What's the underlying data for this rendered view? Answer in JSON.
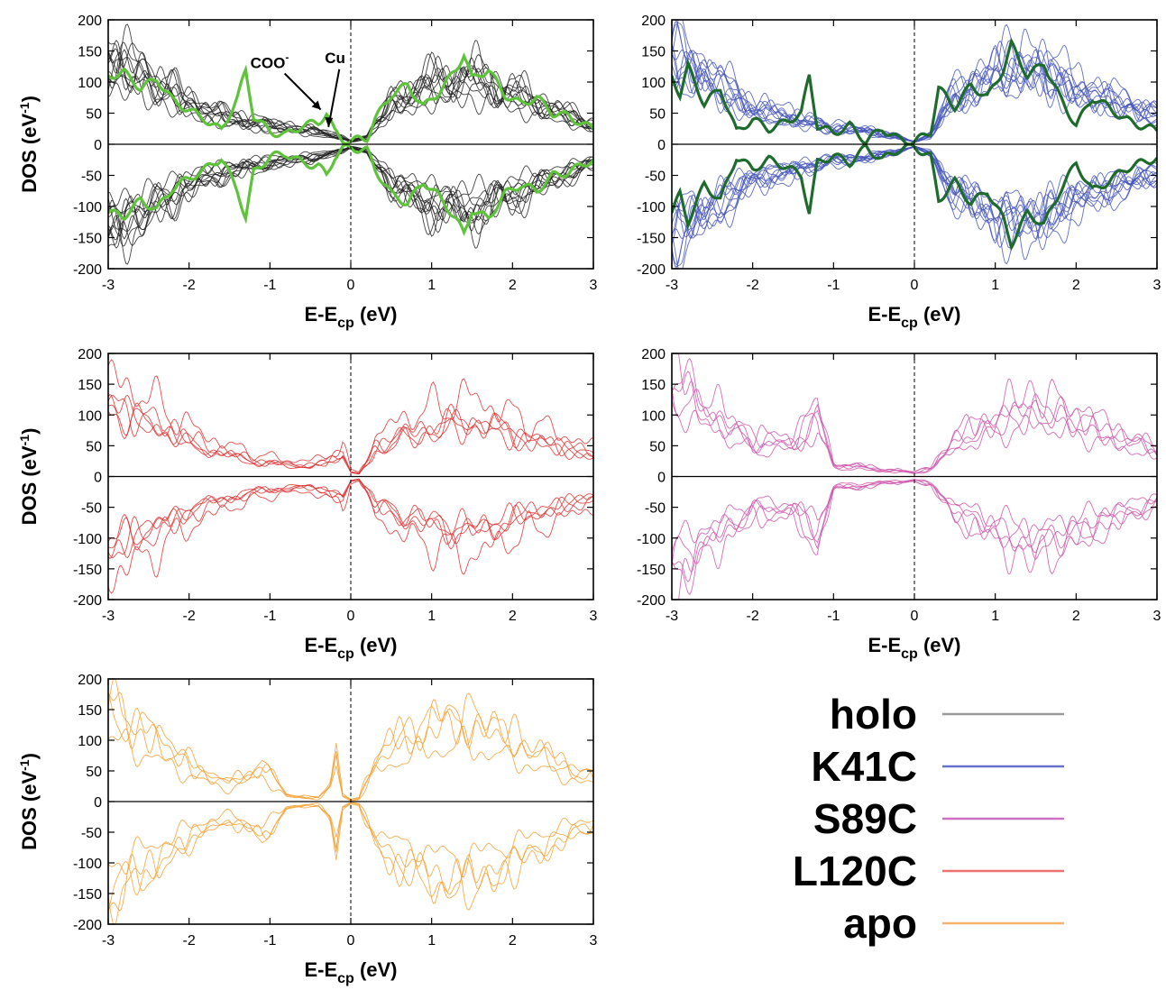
{
  "chart_data": [
    {
      "type": "line",
      "panel": "top-left",
      "xlabel": "E-E",
      "xlabel_sub": "cp",
      "xlabel_unit": " (eV)",
      "ylabel": "DOS (eV",
      "ylabel_sup": "-1",
      "ylabel_end": ")",
      "xlim": [
        -3,
        3
      ],
      "ylim": [
        -200,
        200
      ],
      "xticks": [
        "-3",
        "-2",
        "-1",
        "0",
        "1",
        "2",
        "3"
      ],
      "yticks": [
        "200",
        "150",
        "100",
        "50",
        "0",
        "-50",
        "-100",
        "-150",
        "-200"
      ],
      "series_color": "#222222",
      "highlight_color": "#5ec23a",
      "n_thin": 11,
      "envelope": {
        "x": [
          -3.0,
          -2.5,
          -2.0,
          -1.5,
          -1.0,
          -0.5,
          -0.2,
          0.0,
          0.2,
          0.5,
          1.0,
          1.5,
          2.0,
          2.5,
          3.0
        ],
        "dos": [
          135,
          105,
          65,
          42,
          30,
          22,
          14,
          5,
          12,
          65,
          95,
          105,
          80,
          55,
          30
        ]
      },
      "highlight_series": {
        "x": [
          -3.0,
          -2.8,
          -2.6,
          -2.4,
          -2.2,
          -2.0,
          -1.8,
          -1.6,
          -1.4,
          -1.3,
          -1.2,
          -1.0,
          -0.8,
          -0.6,
          -0.4,
          -0.3,
          -0.2,
          -0.1,
          0.0,
          0.1,
          0.2,
          0.3,
          0.5,
          0.7,
          0.9,
          1.1,
          1.3,
          1.4,
          1.5,
          1.7,
          1.9,
          2.1,
          2.3,
          2.5,
          2.7,
          2.9,
          3.0
        ],
        "dos": [
          110,
          115,
          90,
          105,
          70,
          55,
          40,
          22,
          75,
          118,
          45,
          20,
          15,
          30,
          35,
          50,
          20,
          8,
          5,
          8,
          10,
          40,
          80,
          95,
          60,
          85,
          120,
          145,
          105,
          120,
          80,
          65,
          75,
          50,
          45,
          30,
          25
        ]
      },
      "annotations": [
        {
          "text": "COO",
          "sup": "-",
          "x": -0.35,
          "y": 50
        },
        {
          "text": "Cu",
          "x": -0.12,
          "y": 22
        }
      ]
    },
    {
      "type": "line",
      "panel": "top-right",
      "xlabel": "E-E",
      "xlabel_sub": "cp",
      "xlabel_unit": " (eV)",
      "xlim": [
        -3,
        3
      ],
      "ylim": [
        -200,
        200
      ],
      "xticks": [
        "-3",
        "-2",
        "-1",
        "0",
        "1",
        "2",
        "3"
      ],
      "yticks": [
        "200",
        "150",
        "100",
        "50",
        "0",
        "-50",
        "-100",
        "-150",
        "-200"
      ],
      "series_color": "#4455bb",
      "highlight_color": "#1e6b2d",
      "n_thin": 11,
      "envelope": {
        "x": [
          -3.0,
          -2.5,
          -2.0,
          -1.5,
          -1.0,
          -0.5,
          -0.2,
          0.0,
          0.2,
          0.5,
          1.0,
          1.5,
          2.0,
          2.5,
          3.0
        ],
        "dos": [
          140,
          100,
          55,
          40,
          25,
          20,
          10,
          4,
          15,
          75,
          110,
          120,
          85,
          65,
          45
        ]
      },
      "highlight_series": {
        "x": [
          -3.0,
          -2.9,
          -2.8,
          -2.6,
          -2.4,
          -2.2,
          -2.0,
          -1.8,
          -1.6,
          -1.4,
          -1.3,
          -1.2,
          -1.0,
          -0.8,
          -0.6,
          -0.4,
          -0.2,
          0.0,
          0.2,
          0.3,
          0.5,
          0.7,
          0.9,
          1.1,
          1.2,
          1.4,
          1.6,
          1.8,
          2.0,
          2.2,
          2.4,
          2.6,
          2.8,
          3.0
        ],
        "dos": [
          110,
          80,
          125,
          65,
          90,
          20,
          40,
          25,
          35,
          50,
          110,
          30,
          18,
          30,
          5,
          25,
          8,
          4,
          20,
          90,
          60,
          95,
          75,
          120,
          160,
          110,
          130,
          75,
          30,
          75,
          60,
          40,
          30,
          22
        ]
      }
    },
    {
      "type": "line",
      "panel": "middle-left",
      "xlabel": "E-E",
      "xlabel_sub": "cp",
      "xlabel_unit": " (eV)",
      "ylabel": "DOS (eV",
      "ylabel_sup": "-1",
      "ylabel_end": ")",
      "xlim": [
        -3,
        3
      ],
      "ylim": [
        -200,
        200
      ],
      "xticks": [
        "-3",
        "-2",
        "-1",
        "0",
        "1",
        "2",
        "3"
      ],
      "yticks": [
        "200",
        "150",
        "100",
        "50",
        "0",
        "-50",
        "-100",
        "-150",
        "-200"
      ],
      "series_color": "#e03030",
      "n_thin": 5,
      "envelope": {
        "x": [
          -3.0,
          -2.5,
          -2.0,
          -1.5,
          -1.0,
          -0.6,
          -0.3,
          -0.1,
          0.0,
          0.1,
          0.3,
          0.6,
          1.0,
          1.5,
          2.0,
          2.5,
          3.0
        ],
        "dos": [
          130,
          105,
          65,
          40,
          25,
          20,
          25,
          45,
          8,
          5,
          50,
          75,
          90,
          105,
          80,
          60,
          40
        ]
      }
    },
    {
      "type": "line",
      "panel": "middle-right",
      "xlabel": "E-E",
      "xlabel_sub": "cp",
      "xlabel_unit": " (eV)",
      "xlim": [
        -3,
        3
      ],
      "ylim": [
        -200,
        200
      ],
      "xticks": [
        "-3",
        "-2",
        "-1",
        "0",
        "1",
        "2",
        "3"
      ],
      "yticks": [
        "200",
        "150",
        "100",
        "50",
        "0",
        "-50",
        "-100",
        "-150",
        "-200"
      ],
      "series_color": "#cc55aa",
      "n_thin": 5,
      "envelope": {
        "x": [
          -3.0,
          -2.5,
          -2.0,
          -1.5,
          -1.2,
          -1.0,
          -0.5,
          -0.2,
          0.0,
          0.2,
          0.5,
          1.0,
          1.5,
          2.0,
          2.5,
          3.0
        ],
        "dos": [
          150,
          100,
          55,
          55,
          95,
          20,
          12,
          10,
          5,
          15,
          55,
          90,
          110,
          90,
          65,
          40
        ]
      }
    },
    {
      "type": "line",
      "panel": "bottom-left",
      "xlabel": "E-E",
      "xlabel_sub": "cp",
      "xlabel_unit": " (eV)",
      "ylabel": "DOS (eV",
      "ylabel_sup": "-1",
      "ylabel_end": ")",
      "xlim": [
        -3,
        3
      ],
      "ylim": [
        -200,
        200
      ],
      "xticks": [
        "-3",
        "-2",
        "-1",
        "0",
        "1",
        "2",
        "3"
      ],
      "yticks": [
        "200",
        "150",
        "100",
        "50",
        "0",
        "-50",
        "-100",
        "-150",
        "-200"
      ],
      "series_color": "#f5a030",
      "n_thin": 4,
      "envelope": {
        "x": [
          -3.0,
          -2.5,
          -2.0,
          -1.5,
          -1.1,
          -0.8,
          -0.4,
          -0.25,
          -0.18,
          -0.1,
          0.0,
          0.1,
          0.3,
          0.6,
          1.0,
          1.4,
          2.0,
          2.5,
          3.0
        ],
        "dos": [
          135,
          100,
          55,
          25,
          55,
          10,
          5,
          25,
          75,
          10,
          2,
          5,
          60,
          90,
          110,
          120,
          90,
          60,
          35
        ]
      }
    }
  ],
  "legend": {
    "items": [
      {
        "label": "holo",
        "color": "#999999"
      },
      {
        "label": "K41C",
        "color": "#6670c8"
      },
      {
        "label": "S89C",
        "color": "#d070c4"
      },
      {
        "label": "L120C",
        "color": "#ee7070"
      },
      {
        "label": "apo",
        "color": "#f5b26a"
      }
    ]
  }
}
